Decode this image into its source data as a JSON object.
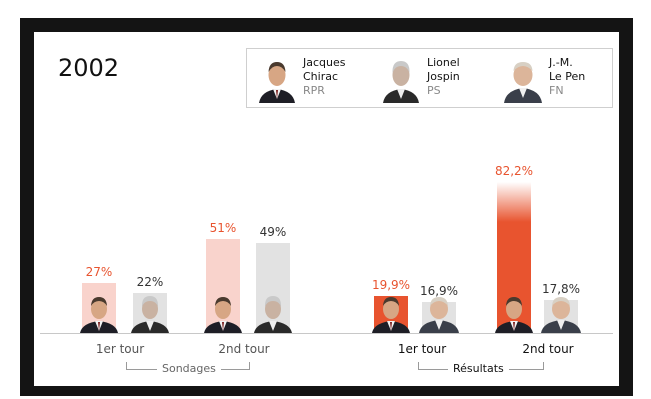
{
  "year": "2002",
  "colors": {
    "red": "#e8542f",
    "pink": "#f9d3cc",
    "grey": "#e2e2e2"
  },
  "legend": [
    {
      "first": "Jacques",
      "last": "Chirac",
      "party": "RPR",
      "icon": "chirac-portrait"
    },
    {
      "first": "Lionel",
      "last": "Jospin",
      "party": "PS",
      "icon": "jospin-portrait"
    },
    {
      "first": "J.-M.",
      "last": "Le Pen",
      "party": "FN",
      "icon": "lepen-portrait"
    }
  ],
  "groups": [
    {
      "name": "Sondages",
      "rounds": [
        "1er tour",
        "2nd tour"
      ]
    },
    {
      "name": "Résultats",
      "rounds": [
        "1er tour",
        "2nd tour"
      ]
    }
  ],
  "chart_data": {
    "type": "bar",
    "title": "2002",
    "categories": [
      "Sondages 1er tour",
      "Sondages 2nd tour",
      "Résultats 1er tour",
      "Résultats 2nd tour"
    ],
    "bars": [
      {
        "group": "Sondages",
        "round": "1er tour",
        "candidate": "Chirac",
        "value": 27,
        "label": "27%"
      },
      {
        "group": "Sondages",
        "round": "1er tour",
        "candidate": "Jospin",
        "value": 22,
        "label": "22%"
      },
      {
        "group": "Sondages",
        "round": "2nd tour",
        "candidate": "Chirac",
        "value": 51,
        "label": "51%"
      },
      {
        "group": "Sondages",
        "round": "2nd tour",
        "candidate": "Jospin",
        "value": 49,
        "label": "49%"
      },
      {
        "group": "Résultats",
        "round": "1er tour",
        "candidate": "Chirac",
        "value": 19.9,
        "label": "19,9%"
      },
      {
        "group": "Résultats",
        "round": "1er tour",
        "candidate": "Le Pen",
        "value": 16.9,
        "label": "16,9%"
      },
      {
        "group": "Résultats",
        "round": "2nd tour",
        "candidate": "Chirac",
        "value": 82.2,
        "label": "82,2%"
      },
      {
        "group": "Résultats",
        "round": "2nd tour",
        "candidate": "Le Pen",
        "value": 17.8,
        "label": "17,8%"
      }
    ],
    "ylim": [
      0,
      100
    ],
    "grid": false,
    "legend_position": "top-right"
  }
}
